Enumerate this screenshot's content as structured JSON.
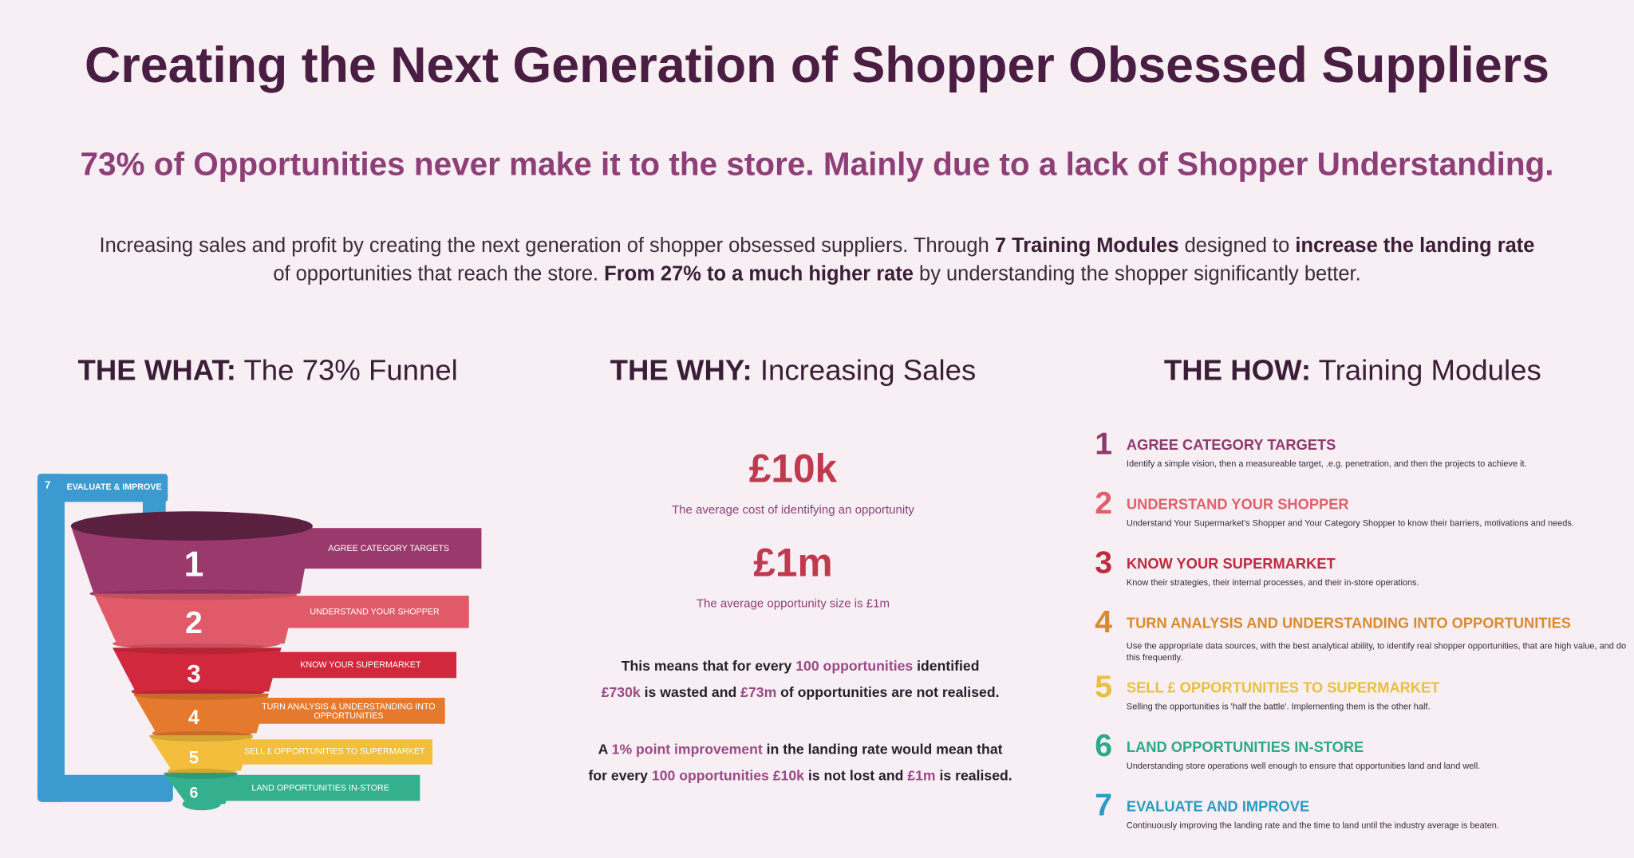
{
  "header": {
    "title": "Creating the Next Generation of Shopper Obsessed Suppliers",
    "subtitle": "73% of Opportunities never make it to the store. Mainly due to a lack of Shopper Understanding.",
    "intro": [
      [
        {
          "text": "Increasing sales and profit by creating the next generation of shopper obsessed suppliers. Through "
        },
        {
          "text": "7 Training Modules",
          "emphasis": true
        },
        {
          "text": " designed to "
        },
        {
          "text": "increase the landing rate",
          "emphasis": true
        }
      ],
      [
        {
          "text": "of opportunities that reach the store. "
        },
        {
          "text": "From 27% to a much higher rate",
          "emphasis": true
        },
        {
          "text": " by understanding the shopper significantly better."
        }
      ]
    ]
  },
  "what": {
    "heading_bold": "THE WHAT:",
    "heading": "The 73% Funnel",
    "tiers": [
      {
        "number": 1,
        "label": "AGREE CATEGORY TARGETS",
        "color": "#9a3a6c"
      },
      {
        "number": 2,
        "label": "UNDERSTAND YOUR SHOPPER",
        "color": "#e05a6a"
      },
      {
        "number": 3,
        "label": "KNOW YOUR SUPERMARKET",
        "color": "#d2283e"
      },
      {
        "number": 4,
        "label": "TURN ANALYSIS & UNDERSTANDING INTO OPPORTUNITIES",
        "color": "#e57a2e"
      },
      {
        "number": 5,
        "label": "SELL £ OPPORTUNITIES TO SUPERMARKET",
        "color": "#f2be3c"
      },
      {
        "number": 6,
        "label": "LAND OPPORTUNITIES IN-STORE",
        "color": "#35b08e"
      }
    ],
    "loop": {
      "number": 7,
      "label": "EVALUATE & IMPROVE",
      "color": "#3b9bd0"
    }
  },
  "why": {
    "heading_bold": "THE WHY:",
    "heading": "Increasing Sales",
    "stats": [
      {
        "value": "£10k",
        "caption": "The average cost of identifying an opportunity"
      },
      {
        "value": "£1m",
        "caption": "The average opportunity size is £1m"
      }
    ],
    "paragraphs": [
      [
        [
          {
            "text": "This means that for every "
          },
          {
            "text": "100 opportunities",
            "emphasis": true
          },
          {
            "text": " identified"
          }
        ],
        [
          {
            "text": "£730k",
            "emphasis": true
          },
          {
            "text": " is wasted and "
          },
          {
            "text": "£73m",
            "emphasis": true
          },
          {
            "text": " of opportunities are not realised."
          }
        ]
      ],
      [
        [
          {
            "text": "A "
          },
          {
            "text": "1% point improvement",
            "emphasis": true
          },
          {
            "text": " in the landing rate would mean that"
          }
        ],
        [
          {
            "text": "for every "
          },
          {
            "text": "100 opportunities £10k",
            "emphasis": true
          },
          {
            "text": " is not lost and "
          },
          {
            "text": "£1m",
            "emphasis": true
          },
          {
            "text": " is realised."
          }
        ]
      ]
    ]
  },
  "how": {
    "heading_bold": "THE HOW:",
    "heading": "Training Modules",
    "modules": [
      {
        "number": 1,
        "title": "AGREE CATEGORY TARGETS",
        "description": "Identify a simple vision, then a measureable target, .e.g. penetration, and then the projects to achieve it.",
        "color": "#8f3a6c"
      },
      {
        "number": 2,
        "title": "UNDERSTAND YOUR SHOPPER",
        "description": "Understand Your Supermarket's Shopper and Your Category Shopper to know their barriers, motivations and needs.",
        "color": "#e0606e"
      },
      {
        "number": 3,
        "title": "KNOW YOUR SUPERMARKET",
        "description": "Know their strategies, their internal processes, and their in-store operations.",
        "color": "#c02a3e"
      },
      {
        "number": 4,
        "title": "TURN ANALYSIS AND UNDERSTANDING INTO OPPORTUNITIES",
        "description": "Use the appropriate data sources, with the best analytical ability, to identify real shopper opportunities, that are high value, and do this frequently.",
        "color": "#d98a30"
      },
      {
        "number": 5,
        "title": "SELL £ OPPORTUNITIES TO SUPERMARKET",
        "description": "Selling the opportunities is 'half the battle'. Implementing them is the other half.",
        "color": "#e8c040"
      },
      {
        "number": 6,
        "title": "LAND OPPORTUNITIES IN-STORE",
        "description": "Understanding store operations well enough to ensure that opportunities land and land well.",
        "color": "#2ea88a"
      },
      {
        "number": 7,
        "title": "EVALUATE AND IMPROVE",
        "description": "Continuously improving the landing rate and the time to land until the industry average is beaten.",
        "color": "#2a9cc4"
      }
    ]
  }
}
